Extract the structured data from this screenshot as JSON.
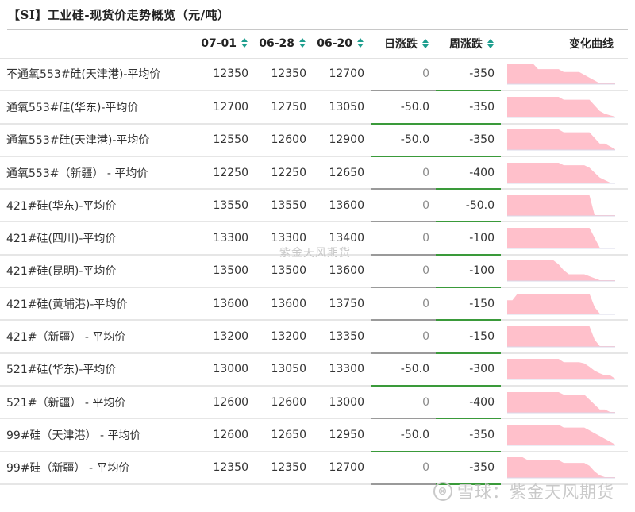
{
  "title": "【SI】工业硅-现货价走势概览（元/吨）",
  "columns": {
    "name": "",
    "d1": "07-01",
    "d2": "06-28",
    "d3": "06-20",
    "daily_change": "日涨跌",
    "weekly_change": "周涨跌",
    "curve": "变化曲线"
  },
  "colors": {
    "accent_sort": "#1e9e8e",
    "negative": "#1a8a1a",
    "neutral": "#8a8a8a",
    "sparkline_fill": "#ffc0cb"
  },
  "rows": [
    {
      "name": "不通氧553#硅(天津港)-平均价",
      "d1": "12350",
      "d2": "12350",
      "d3": "12700",
      "daily": "0",
      "weekly": "-350",
      "spark": [
        12700,
        12700,
        12700,
        12700,
        12700,
        12700,
        12600,
        12600,
        12600,
        12600,
        12600,
        12550,
        12550,
        12550,
        12550,
        12500,
        12450,
        12400,
        12350,
        12350,
        12350,
        12350
      ]
    },
    {
      "name": "通氧553#硅(华东)-平均价",
      "d1": "12700",
      "d2": "12750",
      "d3": "13050",
      "daily": "-50.0",
      "weekly": "-350",
      "spark": [
        13050,
        13050,
        13050,
        13050,
        13050,
        13050,
        13050,
        13050,
        13050,
        13050,
        13050,
        13000,
        13000,
        13000,
        13000,
        13000,
        13000,
        12900,
        12800,
        12750,
        12725,
        12700
      ]
    },
    {
      "name": "通氧553#硅(天津港)-平均价",
      "d1": "12550",
      "d2": "12600",
      "d3": "12900",
      "daily": "-50.0",
      "weekly": "-350",
      "spark": [
        12900,
        12900,
        12900,
        12900,
        12900,
        12900,
        12900,
        12900,
        12900,
        12900,
        12900,
        12850,
        12850,
        12850,
        12850,
        12850,
        12850,
        12750,
        12650,
        12650,
        12600,
        12550
      ]
    },
    {
      "name": "通氧553#（新疆） - 平均价",
      "d1": "12250",
      "d2": "12250",
      "d3": "12650",
      "daily": "0",
      "weekly": "-400",
      "spark": [
        12650,
        12650,
        12650,
        12650,
        12650,
        12650,
        12650,
        12650,
        12650,
        12650,
        12650,
        12600,
        12600,
        12600,
        12600,
        12600,
        12550,
        12450,
        12350,
        12300,
        12250,
        12250
      ]
    },
    {
      "name": "421#硅(华东)-平均价",
      "d1": "13550",
      "d2": "13550",
      "d3": "13600",
      "daily": "0",
      "weekly": "-50.0",
      "spark": [
        13600,
        13600,
        13600,
        13600,
        13600,
        13600,
        13600,
        13600,
        13600,
        13600,
        13600,
        13600,
        13600,
        13600,
        13600,
        13600,
        13600,
        13550,
        13550,
        13550,
        13550,
        13550
      ]
    },
    {
      "name": "421#硅(四川)-平均价",
      "d1": "13300",
      "d2": "13300",
      "d3": "13400",
      "daily": "0",
      "weekly": "-100",
      "spark": [
        13400,
        13400,
        13400,
        13400,
        13400,
        13400,
        13400,
        13400,
        13400,
        13400,
        13400,
        13400,
        13400,
        13400,
        13400,
        13400,
        13400,
        13350,
        13300,
        13300,
        13300,
        13300
      ]
    },
    {
      "name": "421#硅(昆明)-平均价",
      "d1": "13500",
      "d2": "13500",
      "d3": "13600",
      "daily": "0",
      "weekly": "-100",
      "spark": [
        13600,
        13600,
        13600,
        13600,
        13600,
        13600,
        13600,
        13600,
        13600,
        13600,
        13580,
        13550,
        13530,
        13530,
        13530,
        13530,
        13520,
        13510,
        13500,
        13500,
        13500,
        13500
      ]
    },
    {
      "name": "421#硅(黄埔港)-平均价",
      "d1": "13600",
      "d2": "13600",
      "d3": "13750",
      "daily": "0",
      "weekly": "-150",
      "spark": [
        13700,
        13700,
        13750,
        13750,
        13750,
        13750,
        13750,
        13750,
        13750,
        13750,
        13750,
        13750,
        13750,
        13750,
        13750,
        13750,
        13750,
        13650,
        13600,
        13600,
        13600,
        13600
      ]
    },
    {
      "name": "421#（新疆） - 平均价",
      "d1": "13200",
      "d2": "13200",
      "d3": "13350",
      "daily": "0",
      "weekly": "-150",
      "spark": [
        13350,
        13350,
        13350,
        13350,
        13350,
        13350,
        13350,
        13350,
        13350,
        13350,
        13350,
        13350,
        13350,
        13350,
        13350,
        13350,
        13350,
        13250,
        13200,
        13200,
        13200,
        13200
      ]
    },
    {
      "name": "521#硅(华东)-平均价",
      "d1": "13000",
      "d2": "13050",
      "d3": "13300",
      "daily": "-50.0",
      "weekly": "-300",
      "spark": [
        13300,
        13300,
        13300,
        13300,
        13300,
        13300,
        13300,
        13300,
        13300,
        13300,
        13300,
        13250,
        13250,
        13250,
        13250,
        13230,
        13180,
        13120,
        13080,
        13050,
        13050,
        13000
      ]
    },
    {
      "name": "521#（新疆） - 平均价",
      "d1": "12600",
      "d2": "12600",
      "d3": "13000",
      "daily": "0",
      "weekly": "-400",
      "spark": [
        13000,
        13000,
        13000,
        13000,
        13000,
        13000,
        13000,
        13000,
        13000,
        13000,
        13000,
        12950,
        12950,
        12950,
        12950,
        12950,
        12850,
        12750,
        12650,
        12650,
        12600,
        12600
      ]
    },
    {
      "name": "99#硅（天津港） - 平均价",
      "d1": "12600",
      "d2": "12650",
      "d3": "12950",
      "daily": "-50.0",
      "weekly": "-350",
      "spark": [
        12950,
        12950,
        12950,
        12950,
        12950,
        12950,
        12950,
        12950,
        12950,
        12950,
        12950,
        12900,
        12900,
        12900,
        12900,
        12900,
        12850,
        12800,
        12750,
        12700,
        12650,
        12600
      ]
    },
    {
      "name": "99#硅（新疆） - 平均价",
      "d1": "12350",
      "d2": "12350",
      "d3": "12700",
      "daily": "0",
      "weekly": "-350",
      "spark": [
        12700,
        12700,
        12700,
        12700,
        12650,
        12650,
        12650,
        12650,
        12650,
        12650,
        12650,
        12600,
        12600,
        12600,
        12600,
        12600,
        12550,
        12450,
        12380,
        12350,
        12350,
        12350
      ]
    }
  ],
  "watermarks": {
    "center": "紫金天风期货",
    "bottom_logo": "⊗",
    "bottom": "雪球：紫金天风期货"
  }
}
